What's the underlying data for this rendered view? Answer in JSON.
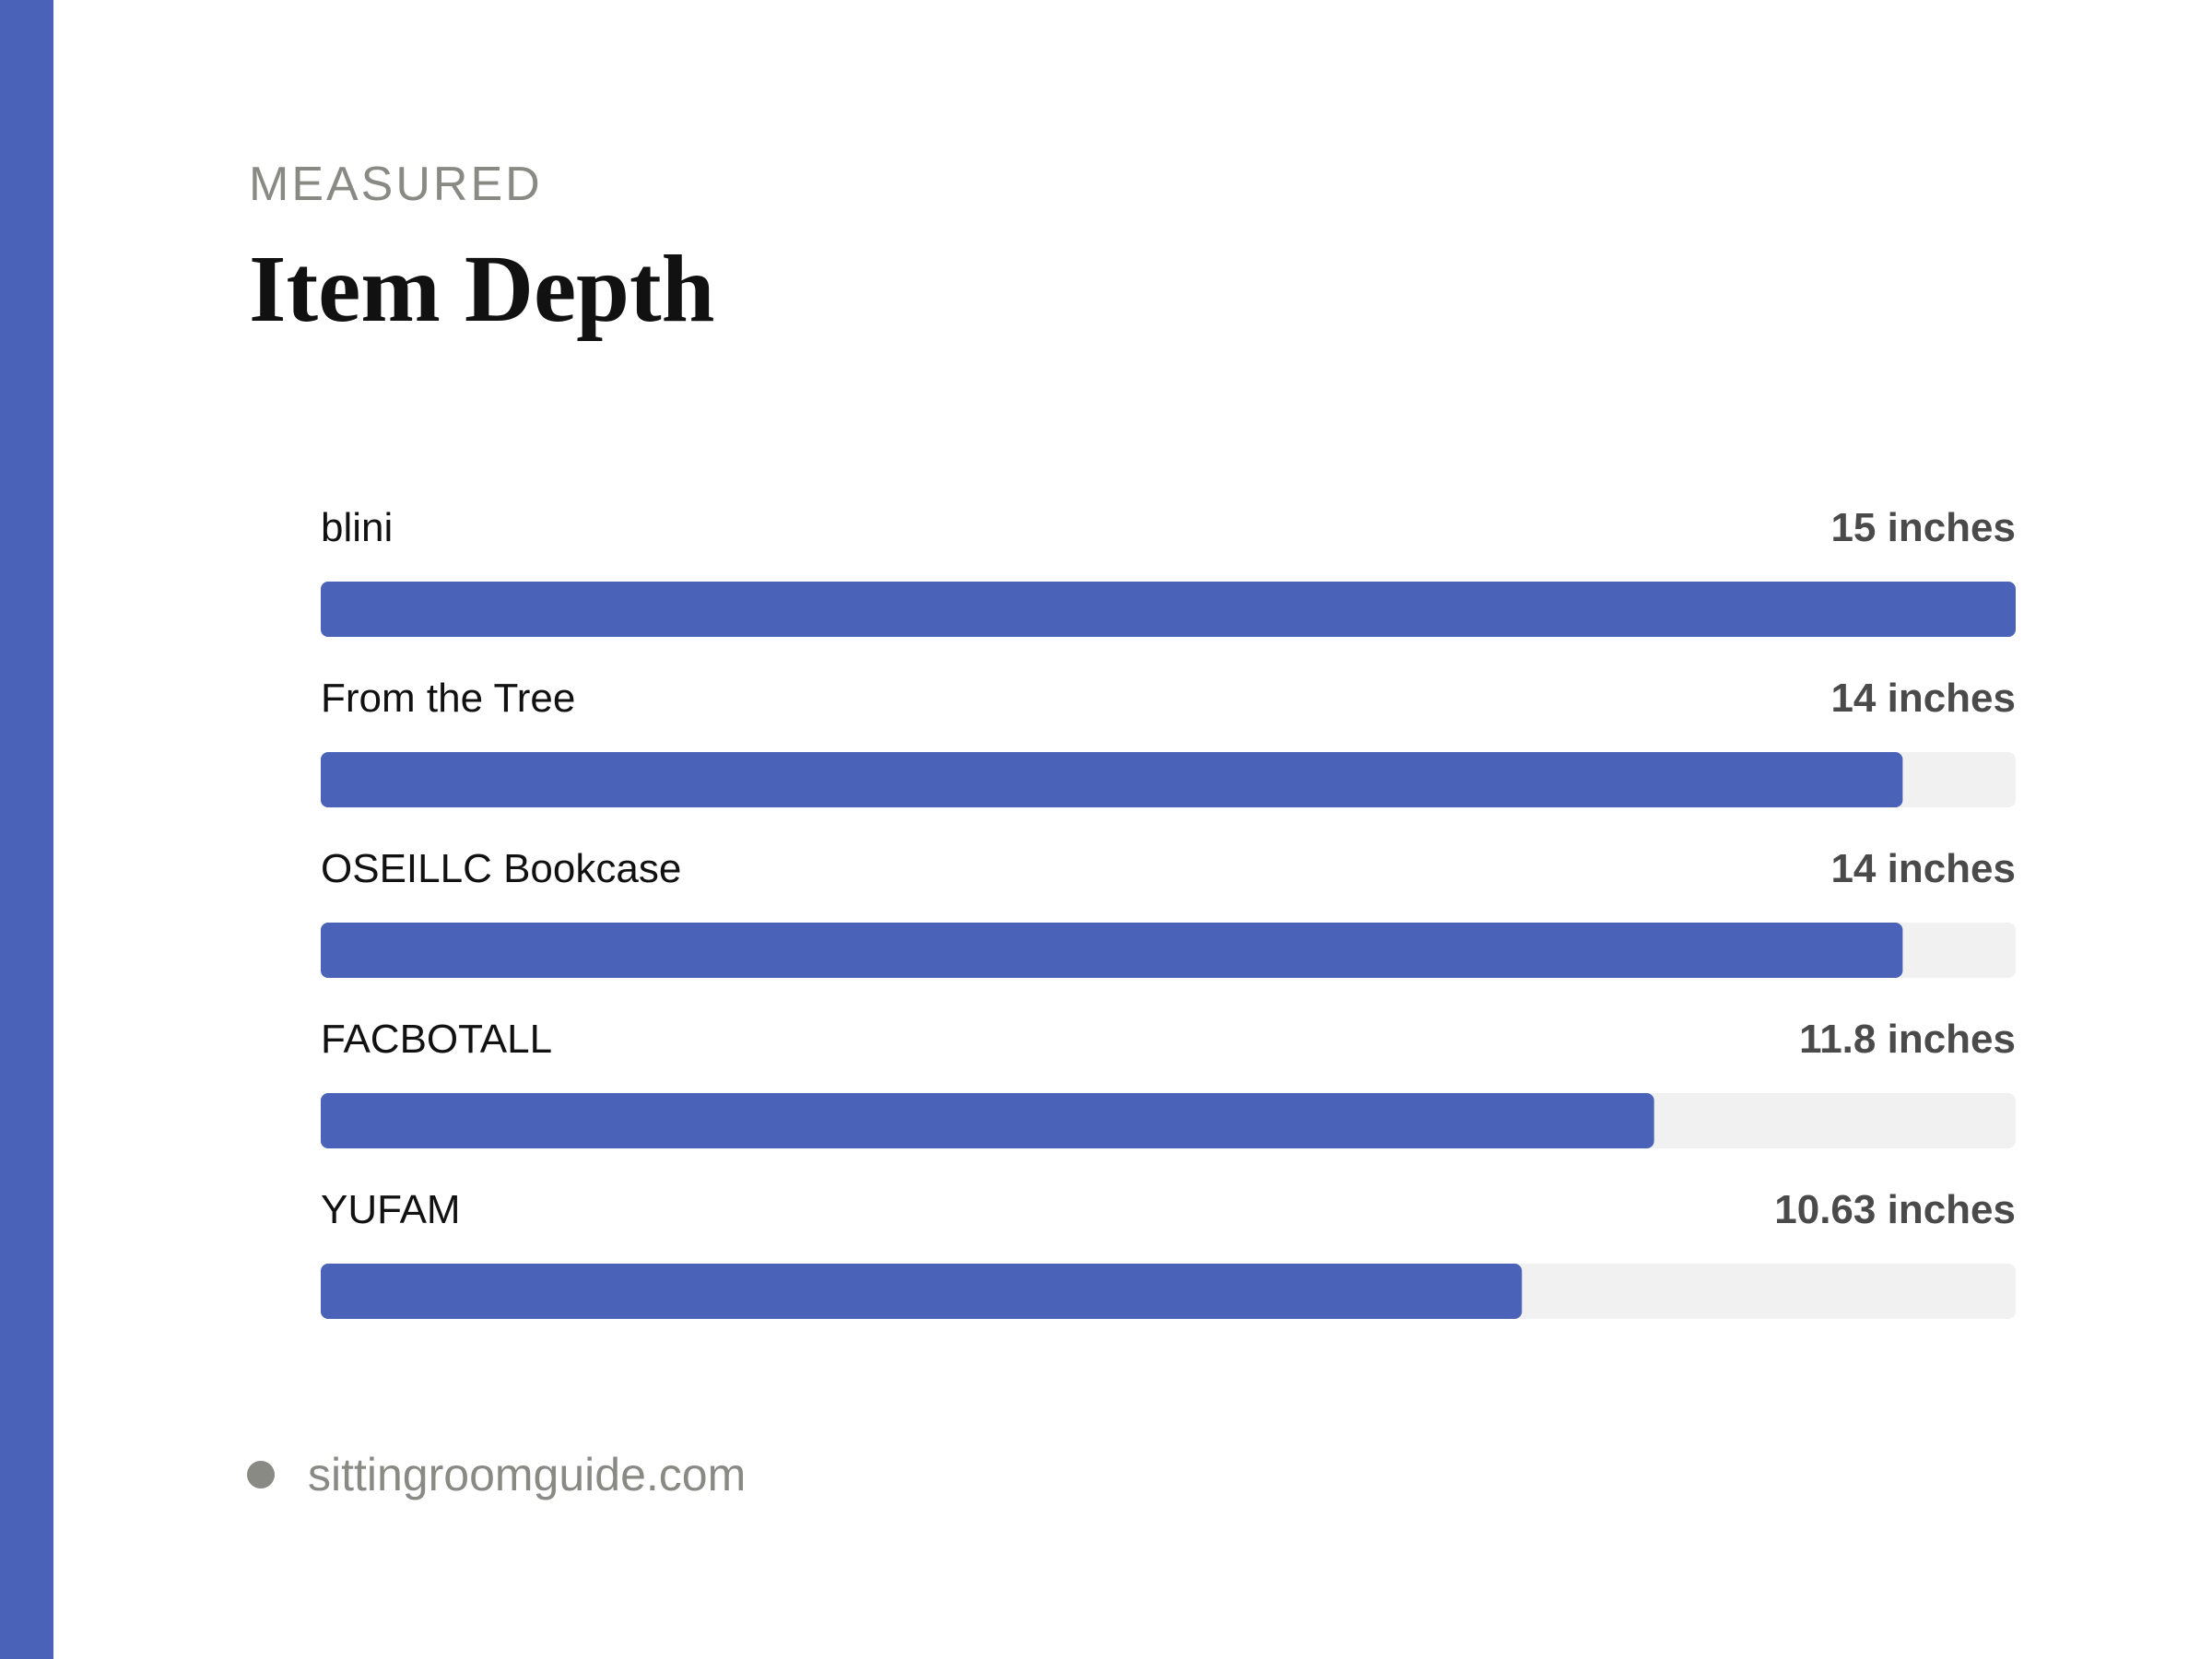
{
  "header": {
    "eyebrow": "MEASURED",
    "title": "Item Depth"
  },
  "footer": {
    "source": "sittingroomguide.com"
  },
  "colors": {
    "accent": "#4a62b8",
    "track": "#f1f1f1",
    "label": "#111111",
    "value": "#4a4a4a",
    "muted": "#8a8a85"
  },
  "chart_data": {
    "type": "bar",
    "orientation": "horizontal",
    "categories": [
      "blini",
      "From the Tree",
      "OSEILLC Bookcase",
      "FACBOTALL",
      "YUFAM"
    ],
    "values": [
      15,
      14,
      14,
      11.8,
      10.63
    ],
    "value_labels": [
      "15 inches",
      "14 inches",
      "14 inches",
      "11.8 inches",
      "10.63 inches"
    ],
    "unit": "inches",
    "xlim": [
      0,
      15
    ],
    "grid": false,
    "legend": "none"
  }
}
